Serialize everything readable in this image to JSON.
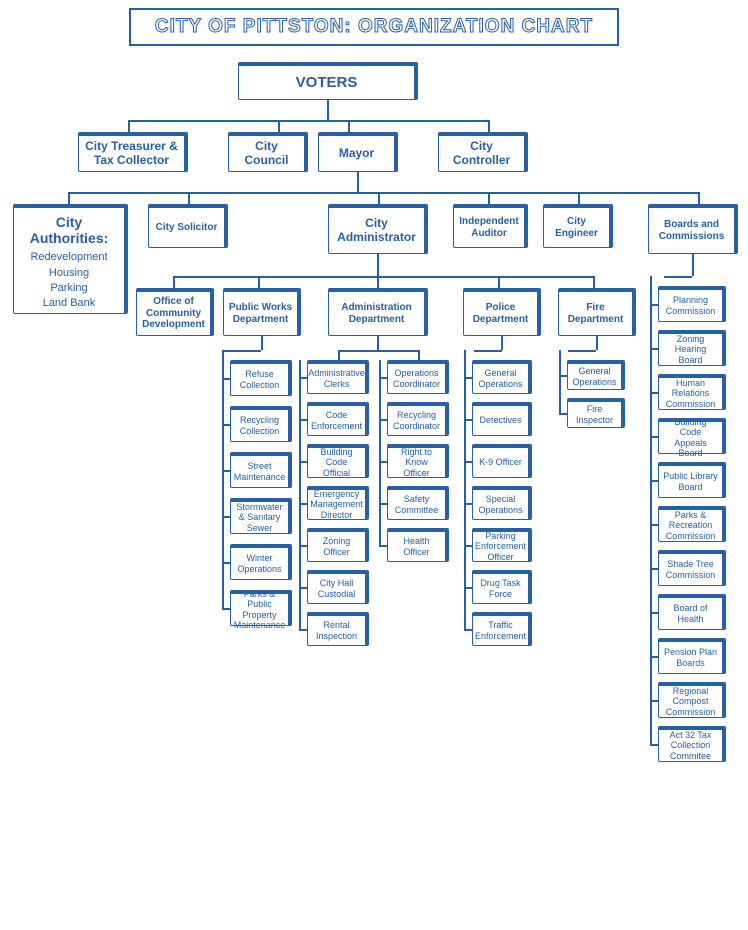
{
  "title": "CITY OF PITTSTON:  ORGANIZATION CHART",
  "colors": {
    "accent": "#2660a6",
    "bg": "#ffffff"
  },
  "nodes": {
    "voters": "VOTERS",
    "treasurer": "City Treasurer & Tax Collector",
    "council": "City Council",
    "mayor": "Mayor",
    "controller": "City Controller",
    "authorities_title": "City Authorities:",
    "authorities_items": [
      "Redevelopment",
      "Housing",
      "Parking",
      "Land Bank"
    ],
    "solicitor": "City Solicitor",
    "administrator": "City Administrator",
    "auditor": "Independent Auditor",
    "engineer": "City Engineer",
    "boards": "Boards and Commissions",
    "ocd": "Office of Community Development",
    "pw": "Public Works Department",
    "admin_dept": "Administration Department",
    "police": "Police Department",
    "fire": "Fire Department",
    "pw_children": [
      "Refuse Collection",
      "Recycling Collection",
      "Street Maintenance",
      "Stormwater & Sanitary Sewer",
      "Winter Operations",
      "Parks & Public Property Maintenance"
    ],
    "admin_left": [
      "Administrative Clerks",
      "Code Enforcement",
      "Building Code Official",
      "Emergency Management Director",
      "Zoning Officer",
      "City Hall Custodial",
      "Rental Inspection"
    ],
    "admin_right": [
      "Operations Coordinator",
      "Recycling Coordinator",
      "Right to Know Officer",
      "Safety Committee",
      "Health Officer"
    ],
    "police_children": [
      "General Operations",
      "Detectives",
      "K-9 Officer",
      "Special Operations",
      "Parking Enforcement Officer",
      "Drug Task Force",
      "Traffic Enforcement"
    ],
    "fire_children": [
      "General Operations",
      "Fire Inspector"
    ],
    "boards_children": [
      "Planning Commission",
      "Zoning Hearing Board",
      "Human Relations Commission",
      "Building Code Appeals Board",
      "Public Library Board",
      "Parks & Recreation Commission",
      "Shade Tree Commission",
      "Board of Health",
      "Pension Plan Boards",
      "Regional Compost Commission",
      "Act 32 Tax Collection Commitee"
    ]
  }
}
